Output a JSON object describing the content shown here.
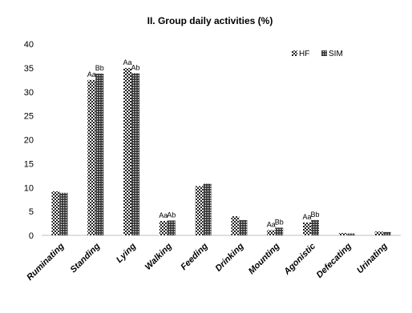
{
  "chart_data": {
    "type": "bar",
    "title": "II. Group daily activities (%)",
    "xlabel": "",
    "ylabel": "",
    "categories": [
      "Ruminating",
      "Standing",
      "Lying",
      "Walking",
      "Feeding",
      "Drinking",
      "Mounting",
      "Agonistic",
      "Defecating",
      "Urinating"
    ],
    "series": [
      {
        "name": "HF",
        "pattern": "checker",
        "values": [
          9.2,
          32.5,
          35.0,
          3.0,
          10.3,
          4.0,
          1.1,
          2.7,
          0.5,
          0.8
        ],
        "annotations": [
          "",
          "Aa",
          "Aa",
          "Aa",
          "",
          "",
          "Aa",
          "Aa",
          "",
          ""
        ]
      },
      {
        "name": "SIM",
        "pattern": "dots",
        "values": [
          8.9,
          33.8,
          33.9,
          3.1,
          10.8,
          3.2,
          1.6,
          3.2,
          0.4,
          0.7
        ],
        "annotations": [
          "",
          "Bb",
          "Ab",
          "Ab",
          "",
          "",
          "Bb",
          "Bb",
          "",
          ""
        ]
      }
    ],
    "ylim": [
      0,
      40
    ],
    "yticks": [
      0,
      5,
      10,
      15,
      20,
      25,
      30,
      35,
      40
    ],
    "grid": false,
    "legend_position": "top-right",
    "colors": {
      "bar": "#222222",
      "axis": "#bfbfbf",
      "text": "#000000"
    }
  }
}
